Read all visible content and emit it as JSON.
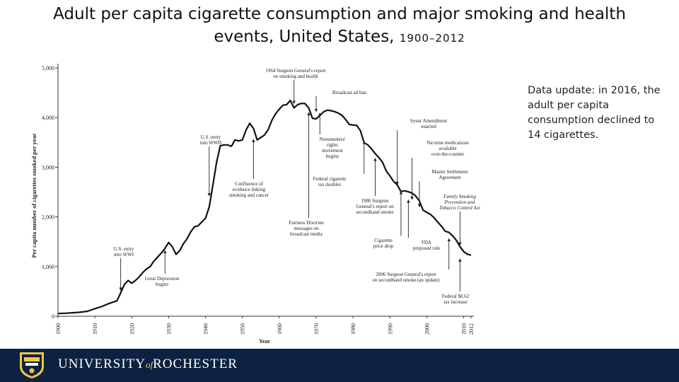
{
  "slide": {
    "title_line1": "Adult per capita cigarette consumption and major smoking and health",
    "title_line2": "events, United States,",
    "title_years": "1900–2012",
    "note": "Data update: in 2016, the adult per capita consumption declined to 14 cigarettes."
  },
  "footer": {
    "university_part1": "UNIVERSITY",
    "university_of": "of",
    "university_part2": "ROCHESTER",
    "background_color": "#0d2240",
    "accent_color": "#f1c44a"
  },
  "chart_data": {
    "type": "line",
    "title": "",
    "xlabel": "Year",
    "ylabel": "Per capita number of cigarettes smoked per year",
    "xlim": [
      1900,
      2012
    ],
    "ylim": [
      0,
      5000
    ],
    "yticks": [
      0,
      1000,
      2000,
      3000,
      4000,
      5000
    ],
    "ytick_labels": [
      "0",
      "1,000",
      "2,000",
      "3,000",
      "4,000",
      "5,000"
    ],
    "xticks": [
      1900,
      1910,
      1920,
      1930,
      1940,
      1950,
      1960,
      1970,
      1980,
      1990,
      2000,
      2010,
      2012
    ],
    "xtick_labels": [
      "1900",
      "1910",
      "1920",
      "1930",
      "1940",
      "1950",
      "1960",
      "1970",
      "1980",
      "1990",
      "2000",
      "2010",
      "2012"
    ],
    "grid": false,
    "series": [
      {
        "x": [
          1900,
          1902,
          1904,
          1906,
          1908,
          1910,
          1912,
          1914,
          1916,
          1917,
          1918,
          1919,
          1920,
          1921,
          1922,
          1923,
          1924,
          1925,
          1926,
          1927,
          1928,
          1929,
          1930,
          1931,
          1932,
          1933,
          1934,
          1935,
          1936,
          1937,
          1938,
          1939,
          1940,
          1941,
          1942,
          1943,
          1944,
          1945,
          1946,
          1947,
          1948,
          1949,
          1950,
          1951,
          1952,
          1953,
          1954,
          1955,
          1956,
          1957,
          1958,
          1959,
          1960,
          1961,
          1962,
          1963,
          1964,
          1965,
          1966,
          1967,
          1968,
          1969,
          1970,
          1971,
          1972,
          1973,
          1974,
          1975,
          1976,
          1977,
          1978,
          1979,
          1980,
          1981,
          1982,
          1983,
          1984,
          1985,
          1986,
          1987,
          1988,
          1989,
          1990,
          1991,
          1992,
          1993,
          1994,
          1995,
          1996,
          1997,
          1998,
          1999,
          2000,
          2001,
          2002,
          2003,
          2004,
          2005,
          2006,
          2007,
          2008,
          2009,
          2010,
          2011,
          2012
        ],
        "values": [
          54,
          60,
          70,
          80,
          100,
          151,
          200,
          260,
          310,
          470,
          640,
          720,
          665,
          720,
          790,
          880,
          950,
          1000,
          1110,
          1190,
          1270,
          1365,
          1485,
          1400,
          1245,
          1320,
          1460,
          1560,
          1700,
          1800,
          1820,
          1900,
          1975,
          2200,
          2640,
          3100,
          3430,
          3450,
          3450,
          3420,
          3550,
          3530,
          3550,
          3750,
          3885,
          3780,
          3550,
          3600,
          3650,
          3760,
          3945,
          4075,
          4170,
          4250,
          4260,
          4345,
          4195,
          4260,
          4285,
          4280,
          4190,
          3985,
          3975,
          4040,
          4115,
          4150,
          4140,
          4120,
          4090,
          4045,
          3960,
          3860,
          3850,
          3840,
          3735,
          3495,
          3450,
          3370,
          3275,
          3195,
          3100,
          2925,
          2825,
          2715,
          2645,
          2510,
          2525,
          2505,
          2480,
          2420,
          2320,
          2135,
          2090,
          2050,
          1980,
          1890,
          1810,
          1710,
          1690,
          1620,
          1530,
          1400,
          1300,
          1250,
          1230
        ]
      }
    ],
    "annotations": [
      {
        "lines": [
          "1964 Surgeon General's report",
          "on smoking and health"
        ],
        "x": 1964
      },
      {
        "lines": [
          "Broadcast ad ban"
        ],
        "x": 1970
      },
      {
        "lines": [
          "U.S. entry",
          "into WWII"
        ],
        "x": 1941
      },
      {
        "lines": [
          "Confluence of",
          "evidence linking",
          "smoking and cancer"
        ],
        "x": 1953
      },
      {
        "lines": [
          "Nonsmokers'",
          "rights",
          "movement",
          "begins"
        ],
        "x": 1971
      },
      {
        "lines": [
          "Federal cigarette",
          "tax doubles"
        ],
        "x": 1983
      },
      {
        "lines": [
          "Synar Amendment",
          "enacted"
        ],
        "x": 1992
      },
      {
        "lines": [
          "Nicotine medications",
          "available",
          "over-the-counter"
        ],
        "x": 1996
      },
      {
        "lines": [
          "Master Settlement",
          "Agreement"
        ],
        "x": 1998
      },
      {
        "lines": [
          "Family Smoking",
          "Prevention and",
          "Tobacco Control Act"
        ],
        "x": 2009
      },
      {
        "lines": [
          "1986 Surgeon",
          "General's report on",
          "secondhand smoke"
        ],
        "x": 1986
      },
      {
        "lines": [
          "Fairness Doctrine",
          "messages on",
          "broadcast media"
        ],
        "x": 1968
      },
      {
        "lines": [
          "U.S. entry",
          "into WWI"
        ],
        "x": 1917
      },
      {
        "lines": [
          "Great Depression",
          "begins"
        ],
        "x": 1929
      },
      {
        "lines": [
          "Cigarette",
          "price drop"
        ],
        "x": 1993
      },
      {
        "lines": [
          "FDA",
          "proposed rule"
        ],
        "x": 1995
      },
      {
        "lines": [
          "2006 Surgeon General's report",
          "on secondhand smoke (an update)"
        ],
        "x": 2006
      },
      {
        "lines": [
          "Federal $0.62",
          "tax increase"
        ],
        "x": 2009
      }
    ]
  }
}
